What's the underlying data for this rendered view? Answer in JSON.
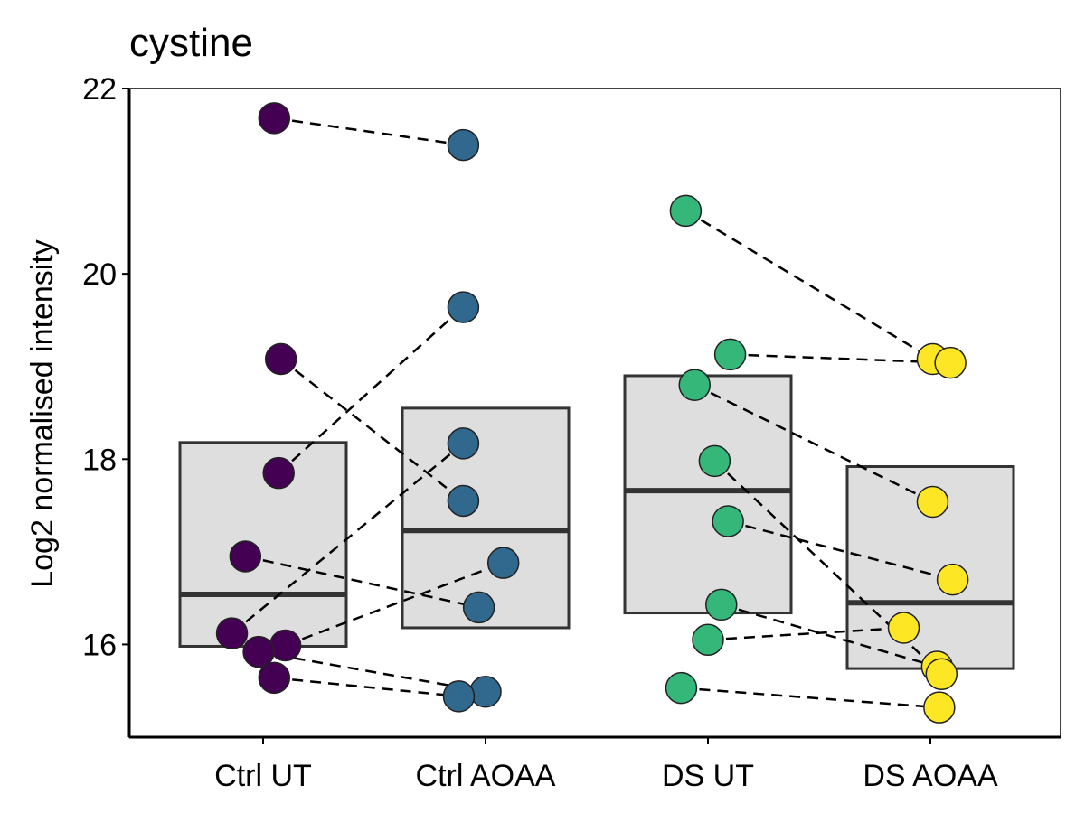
{
  "chart_data": {
    "type": "box",
    "title": "cystine",
    "xlabel": "",
    "ylabel": "Log2 normalised intensity",
    "ylim": [
      15.0,
      22.0
    ],
    "yticks": [
      16,
      18,
      20,
      22
    ],
    "categories": [
      "Ctrl UT",
      "Ctrl AOAA",
      "DS UT",
      "DS AOAA"
    ],
    "boxes": [
      {
        "category": "Ctrl UT",
        "q1": 15.98,
        "median": 16.54,
        "q3": 18.18
      },
      {
        "category": "Ctrl AOAA",
        "q1": 16.18,
        "median": 17.23,
        "q3": 18.55
      },
      {
        "category": "DS UT",
        "q1": 16.34,
        "median": 17.66,
        "q3": 18.9
      },
      {
        "category": "DS AOAA",
        "q1": 15.74,
        "median": 16.45,
        "q3": 17.92
      }
    ],
    "points": [
      {
        "category": "Ctrl UT",
        "y": 21.68,
        "jitter": 0.05
      },
      {
        "category": "Ctrl UT",
        "y": 19.08,
        "jitter": 0.08
      },
      {
        "category": "Ctrl UT",
        "y": 17.85,
        "jitter": 0.07
      },
      {
        "category": "Ctrl UT",
        "y": 16.95,
        "jitter": -0.08
      },
      {
        "category": "Ctrl UT",
        "y": 16.12,
        "jitter": -0.14
      },
      {
        "category": "Ctrl UT",
        "y": 15.99,
        "jitter": 0.1
      },
      {
        "category": "Ctrl UT",
        "y": 15.92,
        "jitter": -0.02
      },
      {
        "category": "Ctrl UT",
        "y": 15.64,
        "jitter": 0.05
      },
      {
        "category": "Ctrl AOAA",
        "y": 21.39,
        "jitter": -0.1
      },
      {
        "category": "Ctrl AOAA",
        "y": 19.64,
        "jitter": -0.1
      },
      {
        "category": "Ctrl AOAA",
        "y": 18.17,
        "jitter": -0.1
      },
      {
        "category": "Ctrl AOAA",
        "y": 17.55,
        "jitter": -0.1
      },
      {
        "category": "Ctrl AOAA",
        "y": 16.88,
        "jitter": 0.08
      },
      {
        "category": "Ctrl AOAA",
        "y": 16.4,
        "jitter": -0.03
      },
      {
        "category": "Ctrl AOAA",
        "y": 15.49,
        "jitter": 0.0
      },
      {
        "category": "Ctrl AOAA",
        "y": 15.44,
        "jitter": -0.12
      },
      {
        "category": "DS UT",
        "y": 20.68,
        "jitter": -0.1
      },
      {
        "category": "DS UT",
        "y": 19.13,
        "jitter": 0.1
      },
      {
        "category": "DS UT",
        "y": 18.8,
        "jitter": -0.06
      },
      {
        "category": "DS UT",
        "y": 17.98,
        "jitter": 0.03
      },
      {
        "category": "DS UT",
        "y": 17.33,
        "jitter": 0.09
      },
      {
        "category": "DS UT",
        "y": 16.43,
        "jitter": 0.06
      },
      {
        "category": "DS UT",
        "y": 16.05,
        "jitter": 0.0
      },
      {
        "category": "DS UT",
        "y": 15.53,
        "jitter": -0.12
      },
      {
        "category": "DS AOAA",
        "y": 19.08,
        "jitter": 0.01
      },
      {
        "category": "DS AOAA",
        "y": 19.04,
        "jitter": 0.09
      },
      {
        "category": "DS AOAA",
        "y": 17.54,
        "jitter": 0.01
      },
      {
        "category": "DS AOAA",
        "y": 16.7,
        "jitter": 0.1
      },
      {
        "category": "DS AOAA",
        "y": 16.18,
        "jitter": -0.12
      },
      {
        "category": "DS AOAA",
        "y": 15.76,
        "jitter": 0.03
      },
      {
        "category": "DS AOAA",
        "y": 15.68,
        "jitter": 0.05
      },
      {
        "category": "DS AOAA",
        "y": 15.32,
        "jitter": 0.04
      }
    ],
    "pairs": [
      [
        0,
        8
      ],
      [
        1,
        11
      ],
      [
        2,
        9
      ],
      [
        3,
        13
      ],
      [
        4,
        10
      ],
      [
        5,
        12
      ],
      [
        6,
        14
      ],
      [
        7,
        15
      ],
      [
        16,
        24
      ],
      [
        17,
        25
      ],
      [
        18,
        26
      ],
      [
        19,
        30
      ],
      [
        20,
        27
      ],
      [
        21,
        29
      ],
      [
        22,
        28
      ],
      [
        23,
        31
      ]
    ],
    "colors": {
      "Ctrl UT": "#440154",
      "Ctrl AOAA": "#31688e",
      "DS UT": "#35b779",
      "DS AOAA": "#fde725",
      "box_fill": "#dedede",
      "box_stroke": "#333333"
    },
    "grid": false,
    "legend": "none"
  }
}
